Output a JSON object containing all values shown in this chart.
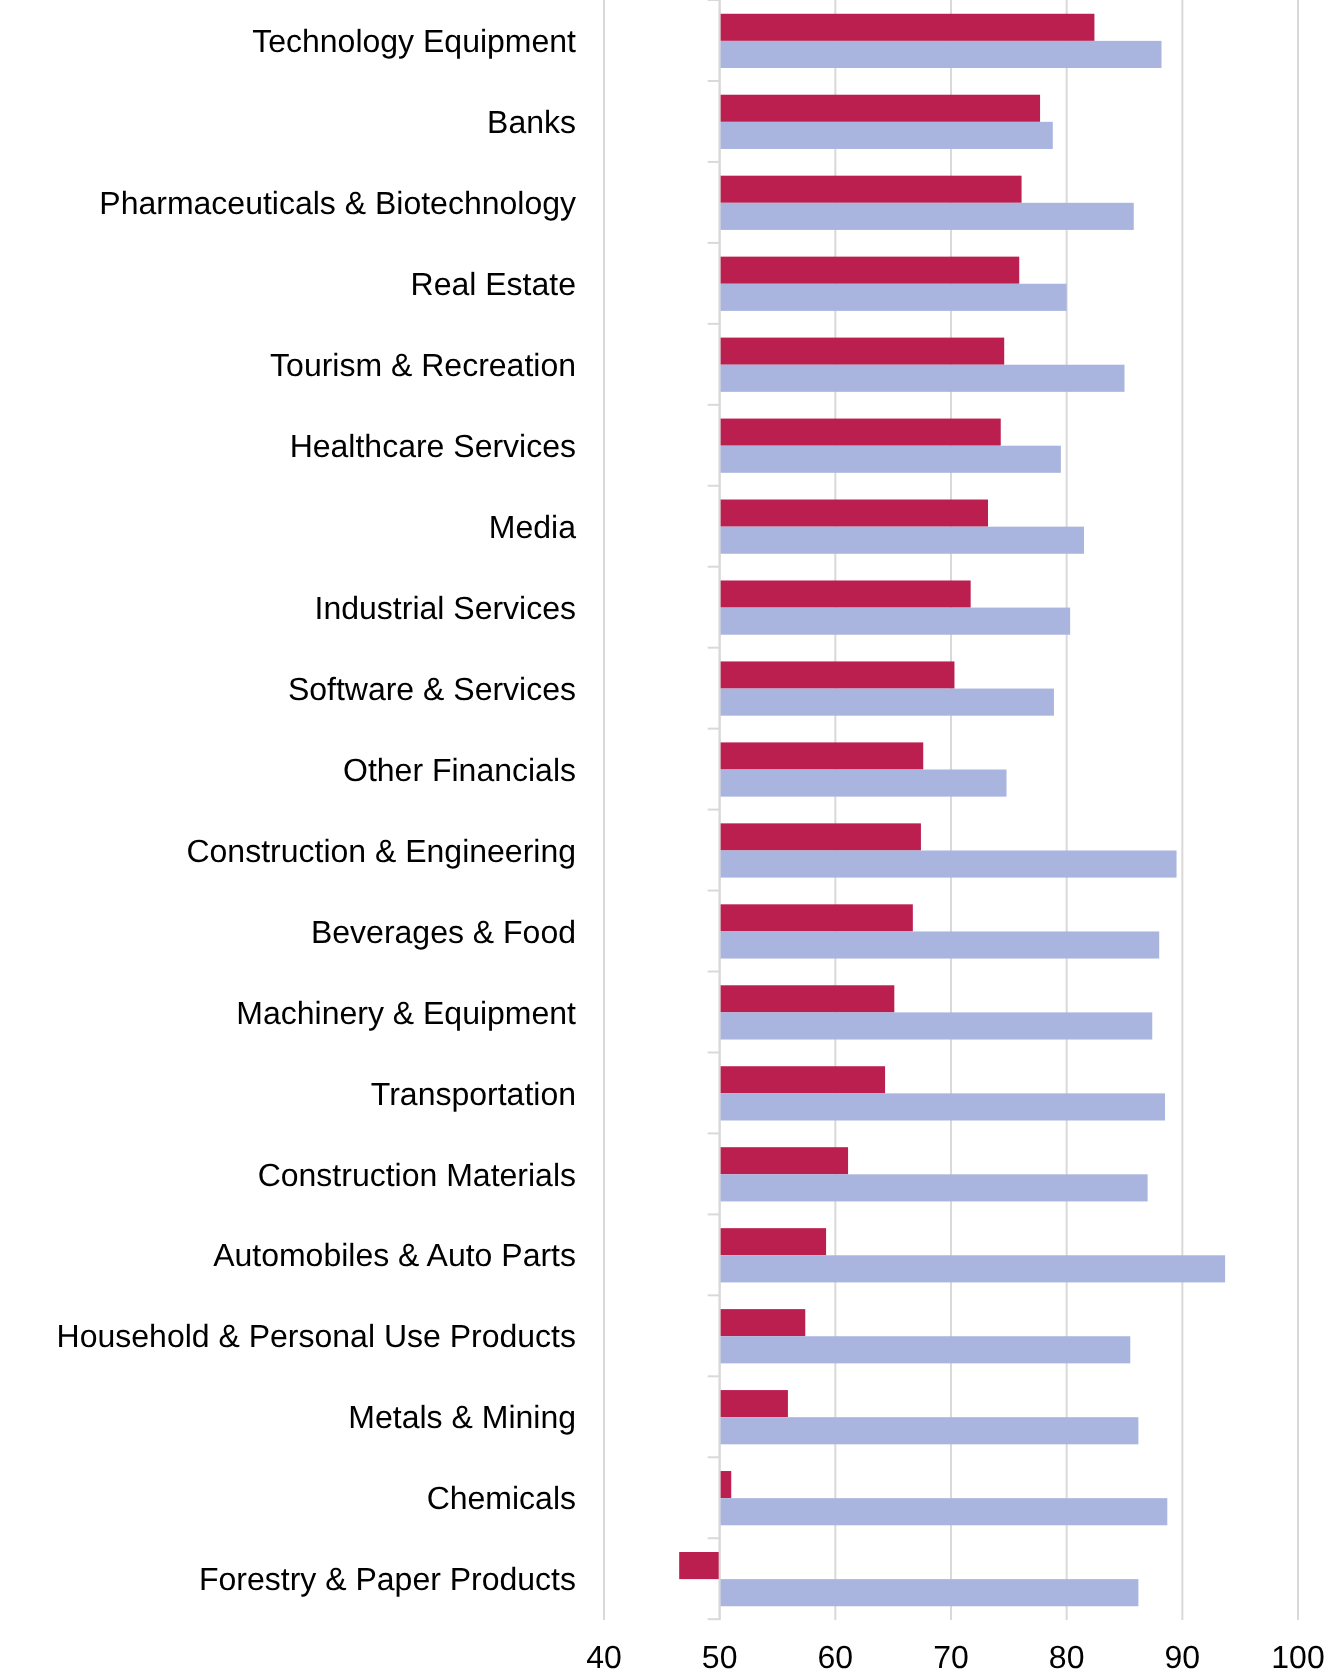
{
  "chart_data": {
    "type": "bar",
    "orientation": "horizontal",
    "categories": [
      "Technology Equipment",
      "Banks",
      "Pharmaceuticals & Biotechnology",
      "Real Estate",
      "Tourism & Recreation",
      "Healthcare Services",
      "Media",
      "Industrial Services",
      "Software & Services",
      "Other Financials",
      "Construction & Engineering",
      "Beverages & Food",
      "Machinery & Equipment",
      "Transportation",
      "Construction Materials",
      "Automobiles & Auto Parts",
      "Household & Personal Use Products",
      "Metals & Mining",
      "Chemicals",
      "Forestry & Paper Products"
    ],
    "series": [
      {
        "color": "#bb1f4f",
        "base": [
          50,
          50,
          50,
          50,
          50,
          50,
          50,
          50,
          50,
          50,
          50,
          50,
          50,
          50,
          50,
          50,
          50,
          50,
          50,
          50
        ],
        "values": [
          32.4,
          27.7,
          26.1,
          25.9,
          24.6,
          24.3,
          23.2,
          21.7,
          20.3,
          17.6,
          17.4,
          16.7,
          15.1,
          14.3,
          11.1,
          9.2,
          7.4,
          5.9,
          1.0,
          -3.5
        ]
      },
      {
        "color": "#a9b5de",
        "base": [
          50,
          50,
          50,
          50,
          50,
          50,
          50,
          50,
          50,
          50,
          50,
          50,
          50,
          50,
          50,
          50,
          50,
          50,
          50,
          50
        ],
        "values": [
          38.2,
          28.8,
          35.8,
          30.0,
          35.0,
          29.5,
          31.5,
          30.3,
          28.9,
          24.8,
          39.5,
          38.0,
          37.4,
          38.5,
          37.0,
          43.7,
          35.5,
          36.2,
          38.7,
          36.2
        ]
      }
    ],
    "xlim": [
      40,
      100
    ],
    "xticks": [
      40,
      50,
      60,
      70,
      80,
      90,
      100
    ],
    "grid": "x"
  }
}
